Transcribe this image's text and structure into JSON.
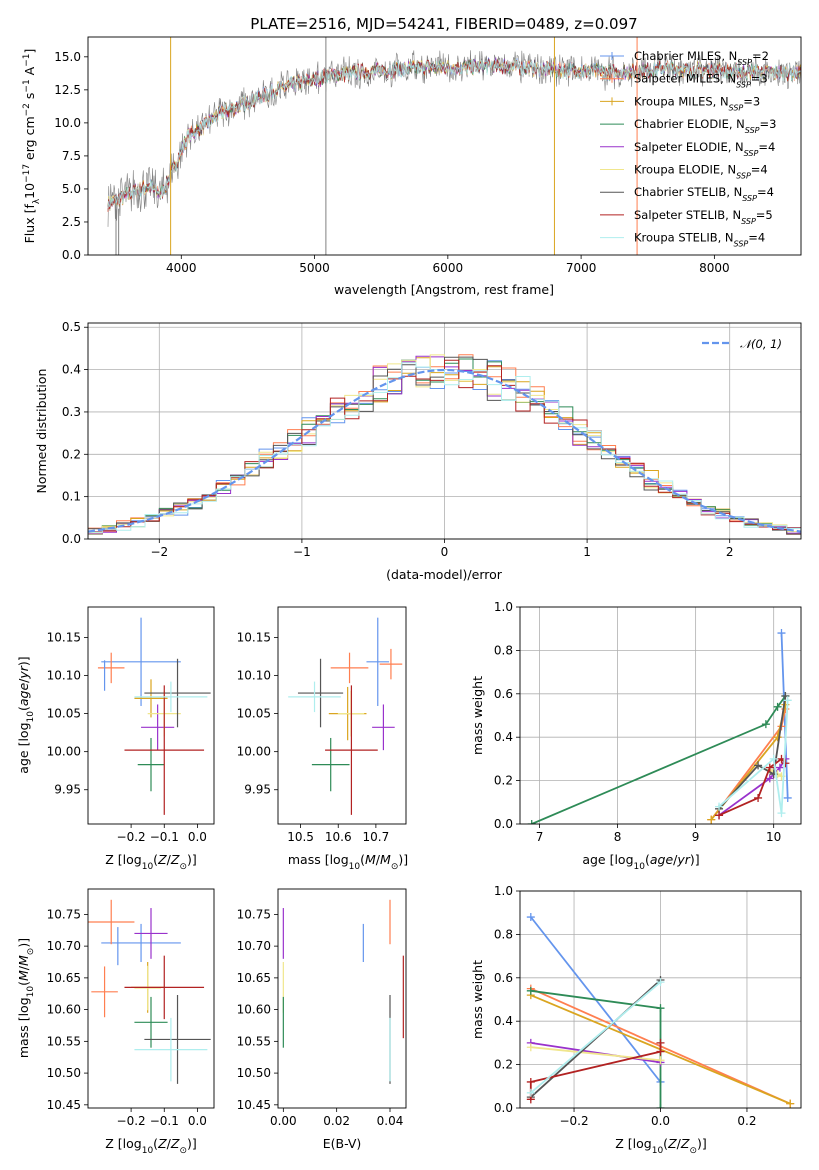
{
  "title": "PLATE=2516, MJD=54241, FIBERID=0489, z=0.097",
  "model_names": [
    "Chabrier MILES",
    "Salpeter MILES",
    "Kroupa MILES",
    "Chabrier ELODIE",
    "Salpeter ELODIE",
    "Kroupa ELODIE",
    "Chabrier STELIB",
    "Salpeter STELIB",
    "Kroupa STELIB"
  ],
  "model_nssp": [
    "2",
    "3",
    "3",
    "3",
    "4",
    "4",
    "4",
    "5",
    "4"
  ],
  "model_colors": [
    "#6495ed",
    "#ff7f50",
    "#daa520",
    "#2e8b57",
    "#9932cc",
    "#f0e68c",
    "#555555",
    "#b22222",
    "#afeeee"
  ],
  "chart_data": [
    {
      "id": "spectrum",
      "type": "line",
      "title": "PLATE=2516, MJD=54241, FIBERID=0489, z=0.097",
      "xlabel": "wavelength [Angstrom, rest frame]",
      "ylabel": "Flux [fλ10⁻¹⁷ erg cm⁻² s⁻¹ A⁻¹]",
      "xlim": [
        3300,
        8650
      ],
      "ylim": [
        0,
        16.5
      ],
      "xticks": [
        4000,
        5000,
        6000,
        7000,
        8000
      ],
      "yticks": [
        0.0,
        2.5,
        5.0,
        7.5,
        10.0,
        12.5,
        15.0
      ],
      "grid": false,
      "legend_position": "right",
      "continuum": {
        "x": [
          3450,
          3550,
          3650,
          3750,
          3850,
          3950,
          4050,
          4150,
          4300,
          4450,
          4600,
          4800,
          5000,
          5200,
          5400,
          5600,
          5800,
          6000,
          6200,
          6400,
          6600,
          6800,
          7000,
          7200,
          7400,
          7600,
          7800,
          8000,
          8200,
          8400,
          8600
        ],
        "y": [
          3.9,
          4.3,
          4.8,
          5.2,
          4.6,
          6.7,
          9.0,
          9.6,
          10.8,
          11.3,
          12.0,
          12.8,
          13.3,
          13.7,
          13.9,
          14.0,
          14.2,
          14.2,
          14.2,
          14.3,
          14.2,
          14.0,
          14.0,
          13.8,
          13.9,
          14.1,
          14.0,
          14.0,
          13.9,
          13.8,
          13.8
        ]
      },
      "series": [
        {
          "name": "Chabrier MILES, N_SSP=2"
        },
        {
          "name": "Salpeter MILES, N_SSP=3"
        },
        {
          "name": "Kroupa MILES, N_SSP=3"
        },
        {
          "name": "Chabrier ELODIE, N_SSP=3"
        },
        {
          "name": "Salpeter ELODIE, N_SSP=4"
        },
        {
          "name": "Kroupa ELODIE, N_SSP=4"
        },
        {
          "name": "Chabrier STELIB, N_SSP=4"
        },
        {
          "name": "Salpeter STELIB, N_SSP=5"
        },
        {
          "name": "Kroupa STELIB, N_SSP=4"
        }
      ],
      "vertical_spikes_x": [
        3510,
        3530,
        3920,
        5085,
        6800,
        7420
      ]
    },
    {
      "id": "residuals",
      "type": "histogram",
      "xlabel": "(data-model)/error",
      "ylabel": "Normed distribution",
      "xlim": [
        -2.5,
        2.5
      ],
      "ylim": [
        0,
        0.51
      ],
      "xticks": [
        -2,
        -1,
        0,
        1,
        2
      ],
      "yticks": [
        0.0,
        0.1,
        0.2,
        0.3,
        0.4,
        0.5
      ],
      "grid": true,
      "bin_width": 0.1,
      "reference_curve": "N(0,1)",
      "legend_position": "top-right",
      "legend": [
        "𝒩(0, 1)"
      ]
    },
    {
      "id": "age_vs_Z",
      "type": "errorbar",
      "xlabel": "Z [log10(Z/Z⊙)]",
      "ylabel": "age  [log10(age/yr)]",
      "xlim": [
        -0.33,
        0.05
      ],
      "ylim": [
        9.905,
        10.19
      ],
      "xticks": [
        -0.2,
        -0.1,
        0.0
      ],
      "yticks": [
        9.95,
        10.0,
        10.05,
        10.1,
        10.15
      ],
      "points": [
        {
          "model": 0,
          "x": -0.17,
          "xerr": 0.12,
          "y": 10.118,
          "yerr": 0.058
        },
        {
          "model": 1,
          "x": -0.26,
          "xerr": 0.04,
          "y": 10.11,
          "yerr": 0.02
        },
        {
          "model": 2,
          "x": -0.14,
          "xerr": 0.05,
          "y": 10.07,
          "yerr": 0.025
        },
        {
          "model": 3,
          "x": -0.14,
          "xerr": 0.04,
          "y": 9.983,
          "yerr": 0.035
        },
        {
          "model": 4,
          "x": -0.12,
          "xerr": 0.05,
          "y": 10.032,
          "yerr": 0.03
        },
        {
          "model": 5,
          "x": -0.1,
          "xerr": 0.05,
          "y": 10.05,
          "yerr": 0.03
        },
        {
          "model": 6,
          "x": -0.06,
          "xerr": 0.1,
          "y": 10.077,
          "yerr": 0.045
        },
        {
          "model": 7,
          "x": -0.1,
          "xerr": 0.12,
          "y": 10.002,
          "yerr": 0.085
        },
        {
          "model": 8,
          "x": -0.08,
          "xerr": 0.11,
          "y": 10.072,
          "yerr": 0.02
        },
        {
          "model": 0,
          "x": -0.28,
          "xerr": 0.0,
          "y": 10.1,
          "yerr": 0.02
        }
      ]
    },
    {
      "id": "age_vs_mass",
      "type": "errorbar",
      "xlabel": "mass [log10(M/M⊙)]",
      "ylabel": "",
      "xlim": [
        10.44,
        10.78
      ],
      "ylim": [
        9.905,
        10.19
      ],
      "xticks": [
        10.5,
        10.6,
        10.7
      ],
      "yticks": [
        9.95,
        10.0,
        10.05,
        10.1,
        10.15
      ],
      "points": [
        {
          "model": 0,
          "x": 10.705,
          "xerr": 0.03,
          "y": 10.118,
          "yerr": 0.058
        },
        {
          "model": 1,
          "x": 10.63,
          "xerr": 0.05,
          "y": 10.11,
          "yerr": 0.02
        },
        {
          "model": 2,
          "x": 10.625,
          "xerr": 0.05,
          "y": 10.05,
          "yerr": 0.035
        },
        {
          "model": 3,
          "x": 10.58,
          "xerr": 0.05,
          "y": 9.983,
          "yerr": 0.035
        },
        {
          "model": 4,
          "x": 10.72,
          "xerr": 0.03,
          "y": 10.032,
          "yerr": 0.03
        },
        {
          "model": 5,
          "x": 10.634,
          "xerr": 0.035,
          "y": 10.05,
          "yerr": 0.03
        },
        {
          "model": 6,
          "x": 10.553,
          "xerr": 0.06,
          "y": 10.077,
          "yerr": 0.045
        },
        {
          "model": 7,
          "x": 10.635,
          "xerr": 0.07,
          "y": 10.002,
          "yerr": 0.085
        },
        {
          "model": 8,
          "x": 10.537,
          "xerr": 0.07,
          "y": 10.072,
          "yerr": 0.02
        },
        {
          "model": 1,
          "x": 10.74,
          "xerr": 0.03,
          "y": 10.115,
          "yerr": 0.02
        }
      ]
    },
    {
      "id": "weight_vs_age",
      "type": "line",
      "xlabel": "age  [log10(age/yr)]",
      "ylabel": "mass weight",
      "xlim": [
        6.75,
        10.35
      ],
      "ylim": [
        0,
        1.0
      ],
      "xticks": [
        7,
        8,
        9,
        10
      ],
      "yticks": [
        0.0,
        0.2,
        0.4,
        0.6,
        0.8,
        1.0
      ],
      "grid": true,
      "series": [
        {
          "model": 0,
          "x": [
            10.1,
            10.18
          ],
          "y": [
            0.88,
            0.12
          ]
        },
        {
          "model": 1,
          "x": [
            9.2,
            10.1,
            10.15
          ],
          "y": [
            0.02,
            0.45,
            0.53
          ]
        },
        {
          "model": 2,
          "x": [
            9.2,
            10.05,
            10.15
          ],
          "y": [
            0.02,
            0.4,
            0.55
          ]
        },
        {
          "model": 3,
          "x": [
            6.9,
            9.9,
            10.05,
            10.15
          ],
          "y": [
            0.0,
            0.46,
            0.54,
            0.59
          ]
        },
        {
          "model": 4,
          "x": [
            9.3,
            9.95,
            10.08,
            10.15
          ],
          "y": [
            0.04,
            0.21,
            0.26,
            0.3
          ]
        },
        {
          "model": 5,
          "x": [
            9.95,
            10.05,
            10.1
          ],
          "y": [
            0.25,
            0.23,
            0.22
          ]
        },
        {
          "model": 6,
          "x": [
            9.3,
            9.8,
            10.0,
            10.15
          ],
          "y": [
            0.07,
            0.27,
            0.23,
            0.59
          ]
        },
        {
          "model": 7,
          "x": [
            9.3,
            9.8,
            9.95,
            10.1,
            10.15
          ],
          "y": [
            0.04,
            0.12,
            0.26,
            0.3,
            0.28
          ]
        },
        {
          "model": 8,
          "x": [
            9.3,
            10.0,
            10.1,
            10.18
          ],
          "y": [
            0.08,
            0.3,
            0.05,
            0.57
          ]
        }
      ]
    },
    {
      "id": "mass_vs_Z",
      "type": "errorbar",
      "xlabel": "Z [log10(Z/Z⊙)]",
      "ylabel": "mass [log10(M/M⊙)]",
      "xlim": [
        -0.33,
        0.05
      ],
      "ylim": [
        10.445,
        10.79
      ],
      "xticks": [
        -0.2,
        -0.1,
        0.0
      ],
      "yticks": [
        10.45,
        10.5,
        10.55,
        10.6,
        10.65,
        10.7,
        10.75
      ],
      "points": [
        {
          "model": 0,
          "x": -0.17,
          "xerr": 0.12,
          "y": 10.705,
          "yerr": 0.03
        },
        {
          "model": 1,
          "x": -0.28,
          "xerr": 0.04,
          "y": 10.628,
          "yerr": 0.04
        },
        {
          "model": 2,
          "x": -0.15,
          "xerr": 0.05,
          "y": 10.635,
          "yerr": 0.04
        },
        {
          "model": 3,
          "x": -0.14,
          "xerr": 0.05,
          "y": 10.58,
          "yerr": 0.04
        },
        {
          "model": 4,
          "x": -0.14,
          "xerr": 0.05,
          "y": 10.72,
          "yerr": 0.04
        },
        {
          "model": 5,
          "x": -0.15,
          "xerr": 0.04,
          "y": 10.634,
          "yerr": 0.035
        },
        {
          "model": 6,
          "x": -0.06,
          "xerr": 0.1,
          "y": 10.553,
          "yerr": 0.07
        },
        {
          "model": 7,
          "x": -0.1,
          "xerr": 0.12,
          "y": 10.635,
          "yerr": 0.05
        },
        {
          "model": 8,
          "x": -0.08,
          "xerr": 0.11,
          "y": 10.537,
          "yerr": 0.05
        },
        {
          "model": 1,
          "x": -0.26,
          "xerr": 0.07,
          "y": 10.738,
          "yerr": 0.035
        },
        {
          "model": 0,
          "x": -0.24,
          "xerr": 0.0,
          "y": 10.7,
          "yerr": 0.03
        }
      ]
    },
    {
      "id": "mass_vs_EBV",
      "type": "errorbar",
      "xlabel": "E(B-V)",
      "ylabel": "",
      "xlim": [
        -0.002,
        0.046
      ],
      "ylim": [
        10.445,
        10.79
      ],
      "xticks": [
        0.0,
        0.02,
        0.04
      ],
      "yticks": [
        10.45,
        10.5,
        10.55,
        10.6,
        10.65,
        10.7,
        10.75
      ],
      "points": [
        {
          "model": 4,
          "x": 0.0,
          "xerr": 0.0,
          "y": 10.72,
          "yerr": 0.04
        },
        {
          "model": 5,
          "x": 0.0,
          "xerr": 0.0,
          "y": 10.635,
          "yerr": 0.04
        },
        {
          "model": 3,
          "x": 0.0,
          "xerr": 0.0,
          "y": 10.58,
          "yerr": 0.04
        },
        {
          "model": 0,
          "x": 0.03,
          "xerr": 0.0,
          "y": 10.705,
          "yerr": 0.03
        },
        {
          "model": 1,
          "x": 0.04,
          "xerr": 0.0,
          "y": 10.738,
          "yerr": 0.035
        },
        {
          "model": 6,
          "x": 0.04,
          "xerr": 0.0,
          "y": 10.553,
          "yerr": 0.07
        },
        {
          "model": 8,
          "x": 0.04,
          "xerr": 0.0,
          "y": 10.537,
          "yerr": 0.05
        },
        {
          "model": 7,
          "x": 0.045,
          "xerr": 0.0,
          "y": 10.62,
          "yerr": 0.065
        }
      ]
    },
    {
      "id": "weight_vs_Z",
      "type": "line",
      "xlabel": "Z [log10(Z/Z⊙)]",
      "ylabel": "mass weight",
      "xlim": [
        -0.325,
        0.325
      ],
      "ylim": [
        0,
        1.0
      ],
      "xticks": [
        -0.2,
        0.0,
        0.2
      ],
      "yticks": [
        0.0,
        0.2,
        0.4,
        0.6,
        0.8,
        1.0
      ],
      "grid": true,
      "series": [
        {
          "model": 0,
          "x": [
            -0.3,
            0.0
          ],
          "y": [
            0.88,
            0.12
          ]
        },
        {
          "model": 1,
          "x": [
            -0.3,
            0.3
          ],
          "y": [
            0.55,
            0.02
          ]
        },
        {
          "model": 2,
          "x": [
            -0.3,
            0.3
          ],
          "y": [
            0.52,
            0.02
          ]
        },
        {
          "model": 3,
          "x": [
            -0.3,
            0.0,
            0.0
          ],
          "y": [
            0.54,
            0.46,
            0.0
          ]
        },
        {
          "model": 4,
          "x": [
            -0.3,
            0.0
          ],
          "y": [
            0.3,
            0.21
          ]
        },
        {
          "model": 5,
          "x": [
            -0.3,
            0.0
          ],
          "y": [
            0.28,
            0.22
          ]
        },
        {
          "model": 6,
          "x": [
            -0.3,
            0.0
          ],
          "y": [
            0.05,
            0.59
          ]
        },
        {
          "model": 7,
          "x": [
            -0.3,
            -0.3,
            0.0,
            0.0
          ],
          "y": [
            0.04,
            0.12,
            0.26,
            0.3
          ]
        },
        {
          "model": 8,
          "x": [
            -0.3,
            0.0
          ],
          "y": [
            0.07,
            0.58
          ]
        }
      ]
    }
  ]
}
